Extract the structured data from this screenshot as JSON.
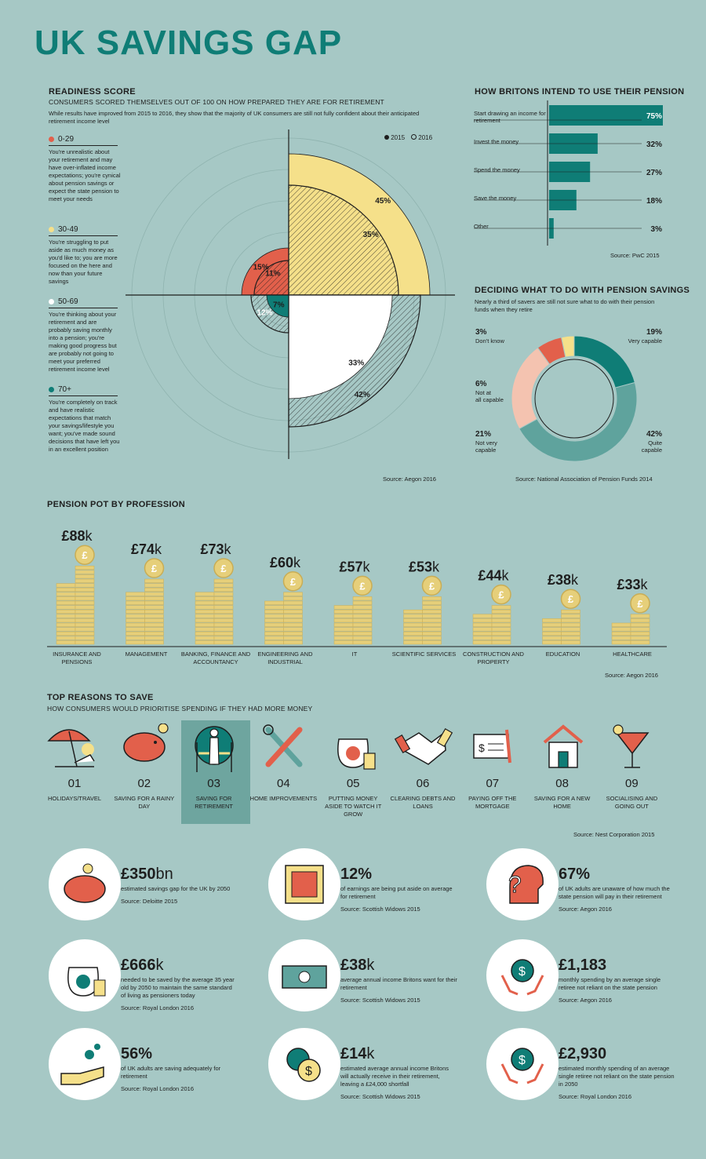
{
  "title": "UK SAVINGS GAP",
  "readiness": {
    "heading": "READINESS SCORE",
    "subheading": "CONSUMERS SCORED THEMSELVES OUT OF 100 ON HOW PREPARED THEY ARE FOR RETIREMENT",
    "intro": "While results have improved from 2015 to 2016, they show that the majority of UK consumers are still not fully confident about their anticipated retirement income level",
    "legend_2015": "2015",
    "legend_2016": "2016",
    "source": "Source: Aegon 2016",
    "bands": [
      {
        "range": "0-29",
        "color": "#e2604b",
        "text": "You're unrealistic about your retirement and may have over-inflated income expectations; you're cynical about pension savings or expect the state pension to meet your needs"
      },
      {
        "range": "30-49",
        "color": "#f5e08a",
        "text": "You're struggling to put aside as much money as you'd like to; you are more focused on the here and now than your future savings"
      },
      {
        "range": "50-69",
        "color": "#ffffff",
        "text": "You're thinking about your retirement and are probably saving monthly into a pension; you're making good progress but are probably not going to meet your preferred retirement income level"
      },
      {
        "range": "70+",
        "color": "#0f7d76",
        "text": "You're completely on track and have realistic expectations that match your savings/lifestyle you want; you've made sound decisions that have left you in an excellent position"
      }
    ]
  },
  "pension_use": {
    "heading": "HOW BRITONS INTEND TO USE THEIR PENSION",
    "source": "Source: PwC 2015"
  },
  "deciding": {
    "heading": "DECIDING WHAT TO DO WITH PENSION SAVINGS",
    "subheading": "Nearly a third of savers are still not sure what to do with their pension funds when they retire",
    "source": "Source: National Association of Pension Funds 2014"
  },
  "profession": {
    "heading": "PENSION POT BY PROFESSION",
    "source": "Source: Aegon 2016"
  },
  "reasons": {
    "heading": "TOP REASONS TO SAVE",
    "subheading": "HOW CONSUMERS WOULD PRIORITISE SPENDING IF THEY HAD MORE MONEY",
    "source": "Source: Nest Corporation 2015",
    "items": [
      {
        "num": "01",
        "label": "HOLIDAYS/TRAVEL"
      },
      {
        "num": "02",
        "label": "SAVING FOR A RAINY DAY"
      },
      {
        "num": "03",
        "label": "SAVING FOR RETIREMENT"
      },
      {
        "num": "04",
        "label": "HOME IMPROVEMENTS"
      },
      {
        "num": "05",
        "label": "PUTTING MONEY ASIDE TO WATCH IT GROW"
      },
      {
        "num": "06",
        "label": "CLEARING DEBTS AND LOANS"
      },
      {
        "num": "07",
        "label": "PAYING OFF THE MORTGAGE"
      },
      {
        "num": "08",
        "label": "SAVING FOR A NEW HOME"
      },
      {
        "num": "09",
        "label": "SOCIALISING AND GOING OUT"
      }
    ]
  },
  "stats": [
    {
      "big": "£350",
      "unit": "bn",
      "desc": "estimated savings gap for the UK by 2050",
      "source": "Source: Deloitte 2015",
      "icon": "piggy-bank-icon"
    },
    {
      "big": "12%",
      "unit": "",
      "desc": "of earnings are being put aside on average for retirement",
      "source": "Source: Scottish Widows 2015",
      "icon": "safe-icon"
    },
    {
      "big": "67%",
      "unit": "",
      "desc": "of UK adults are unaware of how much the state pension will pay in their retirement",
      "source": "Source: Aegon 2016",
      "icon": "question-head-icon"
    },
    {
      "big": "£666",
      "unit": "k",
      "desc": "needed to be saved by the average 35 year old by 2050 to maintain the same standard of living as pensioners today",
      "source": "Source: Royal London 2016",
      "icon": "money-bag-icon"
    },
    {
      "big": "£38",
      "unit": "k",
      "desc": "average annual income Britons want for their retirement",
      "source": "Source: Scottish Widows 2015",
      "icon": "cash-stack-icon"
    },
    {
      "big": "£1,183",
      "unit": "",
      "desc": "monthly spending by an average single retiree not reliant on the state pension",
      "source": "Source: Aegon 2016",
      "icon": "hands-coin-icon"
    },
    {
      "big": "56%",
      "unit": "",
      "desc": "of UK adults are saving adequately for retirement",
      "source": "Source: Royal London 2016",
      "icon": "hand-coins-icon"
    },
    {
      "big": "£14",
      "unit": "k",
      "desc": "estimated average annual income Britons will actually receive in their retirement, leaving a £24,000 shortfall",
      "source": "Source: Scottish Widows 2015",
      "icon": "coins-icon"
    },
    {
      "big": "£2,930",
      "unit": "",
      "desc": "estimated monthly spending of an average single retiree not reliant on the state pension in 2050",
      "source": "Source: Royal London 2016",
      "icon": "hands-coin-icon"
    }
  ],
  "chart_data": [
    {
      "type": "polar-area",
      "categories": [
        "0-29",
        "30-49",
        "50-69",
        "70+"
      ],
      "series": [
        {
          "name": "2015",
          "values": [
            15,
            45,
            33,
            7
          ]
        },
        {
          "name": "2016",
          "values": [
            11,
            35,
            42,
            12
          ]
        }
      ],
      "value_labels": {
        "2015": [
          "15%",
          "45%",
          "33%",
          "7%"
        ],
        "2016": [
          "11%",
          "35%",
          "42%",
          "12%"
        ]
      },
      "legend": "top-right"
    },
    {
      "type": "bar",
      "orientation": "horizontal",
      "categories": [
        "Start drawing an income for retirement",
        "Invest the money",
        "Spend the money",
        "Save the money",
        "Other"
      ],
      "values": [
        75,
        32,
        27,
        18,
        3
      ],
      "value_labels": [
        "75%",
        "32%",
        "27%",
        "18%",
        "3%"
      ]
    },
    {
      "type": "pie",
      "categories": [
        "Very capable",
        "Quite capable",
        "Not very capable",
        "Not at all capable",
        "Don't know"
      ],
      "values": [
        19,
        42,
        21,
        6,
        3
      ],
      "value_labels": [
        "19%",
        "42%",
        "21%",
        "6%",
        "3%"
      ],
      "colors": [
        "#0f7d76",
        "#5fa39d",
        "#f4c3b0",
        "#e2604b",
        "#f5e08a"
      ]
    },
    {
      "type": "bar",
      "categories": [
        "INSURANCE AND PENSIONS",
        "MANAGEMENT",
        "BANKING, FINANCE AND ACCOUNTANCY",
        "ENGINEERING AND INDUSTRIAL",
        "IT",
        "SCIENTIFIC SERVICES",
        "CONSTRUCTION AND PROPERTY",
        "EDUCATION",
        "HEALTHCARE"
      ],
      "values": [
        88,
        74,
        73,
        60,
        57,
        53,
        44,
        38,
        33
      ],
      "value_labels": [
        "£88",
        "£74",
        "£73",
        "£60",
        "£57",
        "£53",
        "£44",
        "£38",
        "£33"
      ],
      "unit": "k"
    }
  ]
}
